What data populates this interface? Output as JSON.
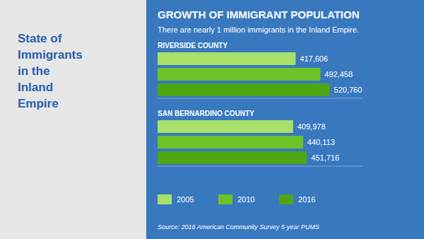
{
  "chart_data": {
    "type": "bar",
    "orientation": "horizontal",
    "title": "GROWTH OF IMMIGRANT POPULATION",
    "subtitle": "There are nearly 1 million immigrants in the Inland Empire.",
    "annotations": [
      "State of\nImmigrants\nin the\nInland\nEmpire",
      "Source: 2016 American Community Survey 5-year PUMS"
    ],
    "categories": [
      "RIVERSIDE COUNTY",
      "SAN BERNARDINO COUNTY"
    ],
    "series": [
      {
        "name": "2005",
        "color": "#a8e06a",
        "values": [
          417606,
          409978
        ],
        "value_labels": [
          "417,606",
          "409,978"
        ]
      },
      {
        "name": "2010",
        "color": "#6dc228",
        "values": [
          492458,
          440113
        ],
        "value_labels": [
          "492,458",
          "440,113"
        ]
      },
      {
        "name": "2016",
        "color": "#4ea614",
        "values": [
          520760,
          451716
        ],
        "value_labels": [
          "520,760",
          "451,716"
        ]
      }
    ],
    "xlim": [
      0,
      620000
    ],
    "data_labels": true,
    "tick_labels": "y",
    "legend": "bottom",
    "grid": false
  }
}
